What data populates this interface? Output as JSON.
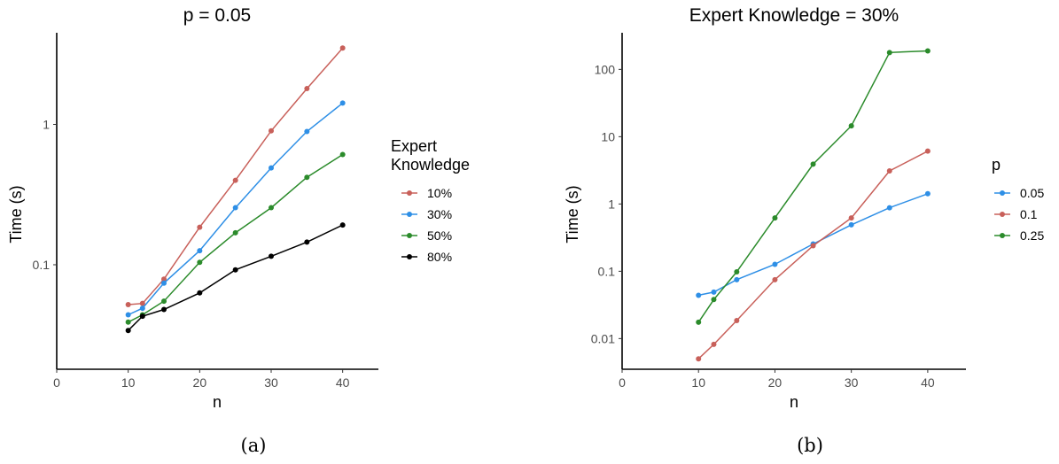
{
  "chart_data": [
    {
      "type": "line",
      "title": "p = 0.05",
      "xlabel": "n",
      "ylabel": "Time (s)",
      "caption": "(a)",
      "x_ticks": [
        0,
        10,
        20,
        30,
        40
      ],
      "y_ticks": [
        0.1,
        1
      ],
      "y_tick_labels": [
        "0.1",
        "1"
      ],
      "y_scale": "log",
      "xlim": [
        0,
        45
      ],
      "ylim": [
        0.018,
        4.5
      ],
      "legend_title": [
        "Expert",
        "Knowledge"
      ],
      "legend_position": "right",
      "x": [
        10,
        12,
        15,
        20,
        25,
        30,
        35,
        40
      ],
      "series": [
        {
          "name": "10%",
          "color": "#c8605a",
          "values": [
            0.052,
            0.053,
            0.079,
            0.185,
            0.4,
            0.9,
            1.8,
            3.5
          ]
        },
        {
          "name": "30%",
          "color": "#2e8fe6",
          "values": [
            0.044,
            0.049,
            0.074,
            0.126,
            0.255,
            0.49,
            0.89,
            1.42
          ]
        },
        {
          "name": "50%",
          "color": "#2b8b2b",
          "values": [
            0.039,
            0.044,
            0.055,
            0.104,
            0.169,
            0.255,
            0.42,
            0.61
          ]
        },
        {
          "name": "80%",
          "color": "#000000",
          "values": [
            0.034,
            0.043,
            0.048,
            0.063,
            0.092,
            0.115,
            0.145,
            0.192
          ]
        }
      ]
    },
    {
      "type": "line",
      "title": "Expert Knowledge = 30%",
      "xlabel": "n",
      "ylabel": "Time (s)",
      "caption": "(b)",
      "x_ticks": [
        0,
        10,
        20,
        30,
        40
      ],
      "y_ticks": [
        0.01,
        0.1,
        1,
        10,
        100
      ],
      "y_tick_labels": [
        "0.01",
        "0.1",
        "1",
        "10",
        "100"
      ],
      "y_scale": "log",
      "xlim": [
        0,
        45
      ],
      "ylim": [
        0.0035,
        350
      ],
      "legend_title": [
        "p"
      ],
      "legend_position": "right",
      "x": [
        10,
        12,
        15,
        20,
        25,
        30,
        35,
        40
      ],
      "series": [
        {
          "name": "0.05",
          "color": "#2e8fe6",
          "values": [
            0.044,
            0.049,
            0.075,
            0.127,
            0.255,
            0.49,
            0.88,
            1.42
          ]
        },
        {
          "name": "0.1",
          "color": "#c8605a",
          "values": [
            0.005,
            0.0082,
            0.0185,
            0.075,
            0.24,
            0.62,
            3.1,
            6.1
          ]
        },
        {
          "name": "0.25",
          "color": "#2b8b2b",
          "values": [
            0.0175,
            0.038,
            0.098,
            0.62,
            3.9,
            14.5,
            178,
            188
          ]
        }
      ]
    }
  ]
}
